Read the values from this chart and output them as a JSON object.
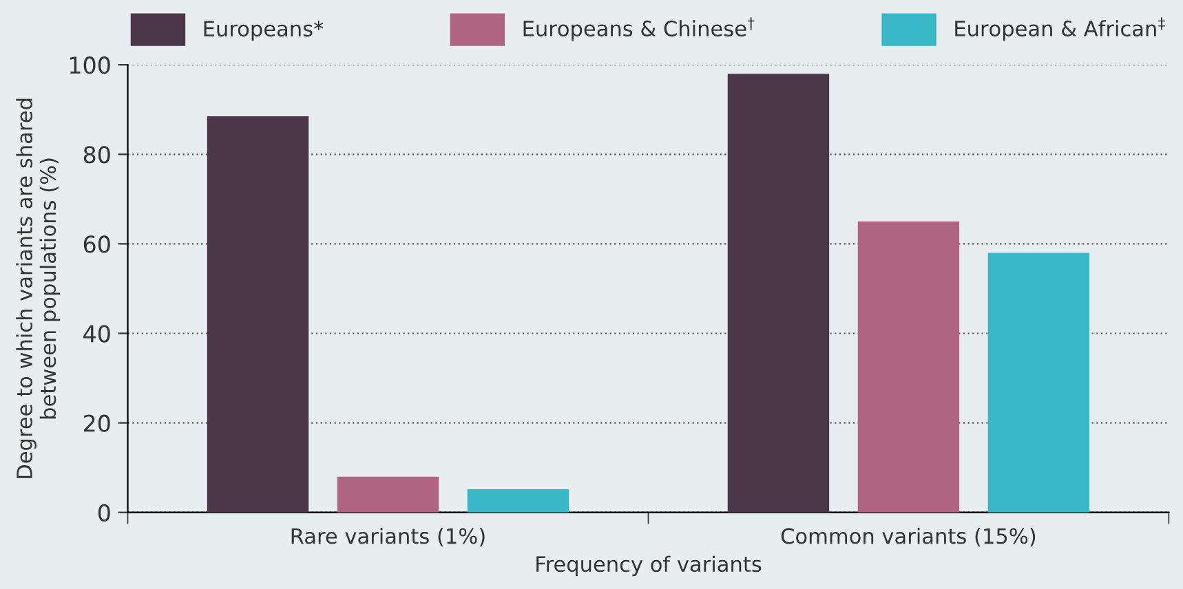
{
  "chart_data": {
    "type": "bar",
    "categories": [
      "Rare variants (1%)",
      "Common variants (15%)"
    ],
    "series": [
      {
        "name": "Europeans*",
        "color": "#4b3749",
        "values": [
          88.5,
          98
        ]
      },
      {
        "name": "Europeans & Chinese$^{†}$",
        "color": "#b06582",
        "values": [
          8,
          65
        ]
      },
      {
        "name": "European & African$^{‡}$",
        "color": "#3ab8c8",
        "values": [
          5.2,
          58
        ]
      }
    ],
    "xlabel": "Frequency of variants",
    "ylabel": "Degree to which variants are shared\nbetween populations (%)",
    "ylim": [
      0,
      100
    ],
    "yticks": [
      0,
      20,
      40,
      60,
      80,
      100
    ],
    "grid": "y",
    "legend": "top"
  }
}
